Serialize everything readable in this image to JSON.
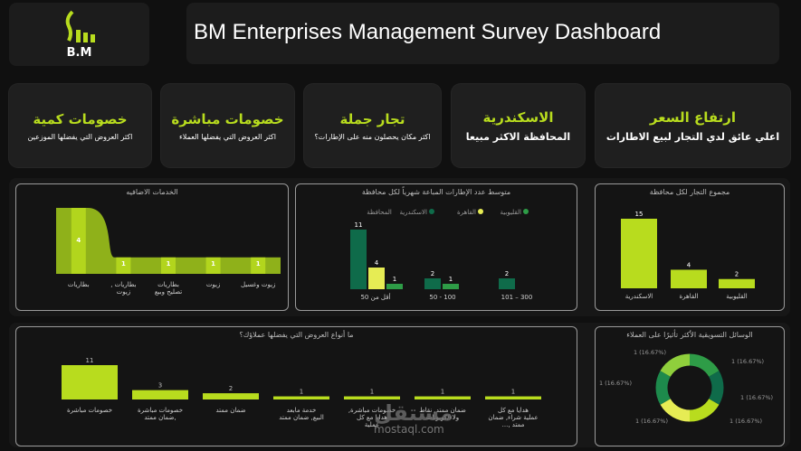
{
  "header": {
    "logo_text": "B.M",
    "title": "BM Enterprises Management Survey Dashboard"
  },
  "kpis": [
    {
      "title": "خصومات كمية",
      "subtitle": "اكثر العروض التي يفضلها الموزعين"
    },
    {
      "title": "خصومات مباشرة",
      "subtitle": "اكثر العروض التي يفضلها العملاء"
    },
    {
      "title": "تجار جملة",
      "subtitle": "اكثر مكان يحصلون منه على الإطارات؟"
    },
    {
      "title": "الاسكندرية",
      "subtitle": "المحافظة الاكثر مبيعا"
    },
    {
      "title": "ارتفاع السعر",
      "subtitle": "اعلي عائق لدي التجار لبيع الاطارات"
    }
  ],
  "colors": {
    "lime": "#b8dc1e",
    "dark_green": "#0f6b4a",
    "mid_green": "#2e9c47",
    "yellow": "#e6ec54"
  },
  "chart_data": [
    {
      "type": "area",
      "title": "الخدمات الاضافيه",
      "categories": [
        "بطاريات",
        "بطاريات , زيوت",
        "بطاريات تصليح وبيع",
        "زيوت",
        "زيوت وغسيل"
      ],
      "values": [
        4,
        1,
        1,
        1,
        1
      ]
    },
    {
      "type": "bar",
      "title": "متوسط عدد الإطارات المباعة شهرياً لكل محافظة",
      "legend_title": "المحافظة",
      "categories": [
        "أقل من 50",
        "50 - 100",
        "101 – 300"
      ],
      "series": [
        {
          "name": "الاسكندرية",
          "values": [
            11,
            2,
            2
          ]
        },
        {
          "name": "القاهرة",
          "values": [
            4,
            null,
            null
          ]
        },
        {
          "name": "القليوبية",
          "values": [
            1,
            1,
            null
          ]
        }
      ]
    },
    {
      "type": "bar",
      "title": "مجموع التجار لكل محافظة",
      "categories": [
        "الاسكندرية",
        "القاهرة",
        "القليوبية"
      ],
      "values": [
        15,
        4,
        2
      ]
    },
    {
      "type": "bar",
      "title": "ما أنواع العروض التي يفضلها عملاؤك؟",
      "categories": [
        "خصومات مباشرة",
        "خصومات مباشرة ,ضمان ممتد",
        "ضمان ممتد",
        "خدمة مابعد البيع, ضمان ممتد",
        "خصومات مباشرة, هدايا مع كل عملية",
        "ضمان ممتد, نقاط ولاء/كوبونات",
        "هدايا مع كل عملية شراء, ضمان ممتد ,..."
      ],
      "values": [
        11,
        3,
        2,
        1,
        1,
        1,
        1
      ]
    },
    {
      "type": "pie",
      "title": "الوسائل التسويقية الأكثر تأثيرًا على العملاء",
      "slice_labels": [
        "1 (16.67%)",
        "1 (16.67%)",
        "1 (16.67%)",
        "1 (16.67%)",
        "1 (16.67%)",
        "1 (16.67%)"
      ],
      "values": [
        1,
        1,
        1,
        1,
        1,
        1
      ]
    }
  ],
  "watermark": {
    "arabic": "مستقل",
    "latin": "mostaql.com"
  }
}
